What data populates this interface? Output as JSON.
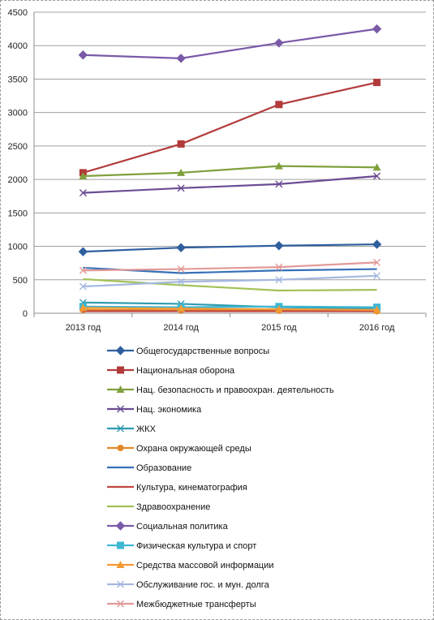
{
  "chart_data": {
    "type": "line",
    "categories": [
      "2013 год",
      "2014 год",
      "2015 год",
      "2016 год"
    ],
    "ylim": [
      0,
      4500
    ],
    "yticks": [
      0,
      500,
      1000,
      1500,
      2000,
      2500,
      3000,
      3500,
      4000,
      4500
    ],
    "grid": "horizontal",
    "legend_position": "bottom",
    "series": [
      {
        "name": "Общегосударственные вопросы",
        "color": "#2f5f9e",
        "marker": "diamond",
        "values": [
          920,
          980,
          1010,
          1030
        ]
      },
      {
        "name": "Национальная оборона",
        "color": "#b23a3a",
        "marker": "square",
        "values": [
          2100,
          2530,
          3120,
          3450
        ]
      },
      {
        "name": "Нац. безопасность и правоохран. деятельность",
        "color": "#7fa03c",
        "marker": "triangle",
        "values": [
          2050,
          2100,
          2200,
          2180
        ]
      },
      {
        "name": "Нац. экономика",
        "color": "#6a4c93",
        "marker": "x",
        "values": [
          1800,
          1870,
          1930,
          2050
        ]
      },
      {
        "name": "ЖКХ",
        "color": "#2e9bb0",
        "marker": "x",
        "values": [
          160,
          140,
          90,
          70
        ]
      },
      {
        "name": "Охрана окружающей среды",
        "color": "#e3892a",
        "marker": "circle",
        "values": [
          50,
          45,
          40,
          30
        ]
      },
      {
        "name": "Образование",
        "color": "#3670b8",
        "marker": "none",
        "values": [
          680,
          600,
          640,
          660
        ]
      },
      {
        "name": "Культура, кинематография",
        "color": "#c0463f",
        "marker": "none",
        "values": [
          30,
          30,
          30,
          30
        ]
      },
      {
        "name": "Здравоохранение",
        "color": "#a2c258",
        "marker": "none",
        "values": [
          510,
          420,
          340,
          350
        ]
      },
      {
        "name": "Социальная политика",
        "color": "#7a5aa8",
        "marker": "diamond",
        "values": [
          3860,
          3810,
          4040,
          4250
        ]
      },
      {
        "name": "Физическая культура и спорт",
        "color": "#3fb7d2",
        "marker": "square",
        "values": [
          100,
          90,
          100,
          90
        ]
      },
      {
        "name": "Средства массовой информации",
        "color": "#f59a32",
        "marker": "triangle",
        "values": [
          80,
          70,
          60,
          50
        ]
      },
      {
        "name": "Обслуживание гос. и мун. долга",
        "color": "#a4b8df",
        "marker": "x",
        "values": [
          400,
          470,
          500,
          560
        ]
      },
      {
        "name": "Межбюджетные трансферты",
        "color": "#e29a98",
        "marker": "x",
        "values": [
          640,
          660,
          690,
          760
        ]
      }
    ]
  }
}
